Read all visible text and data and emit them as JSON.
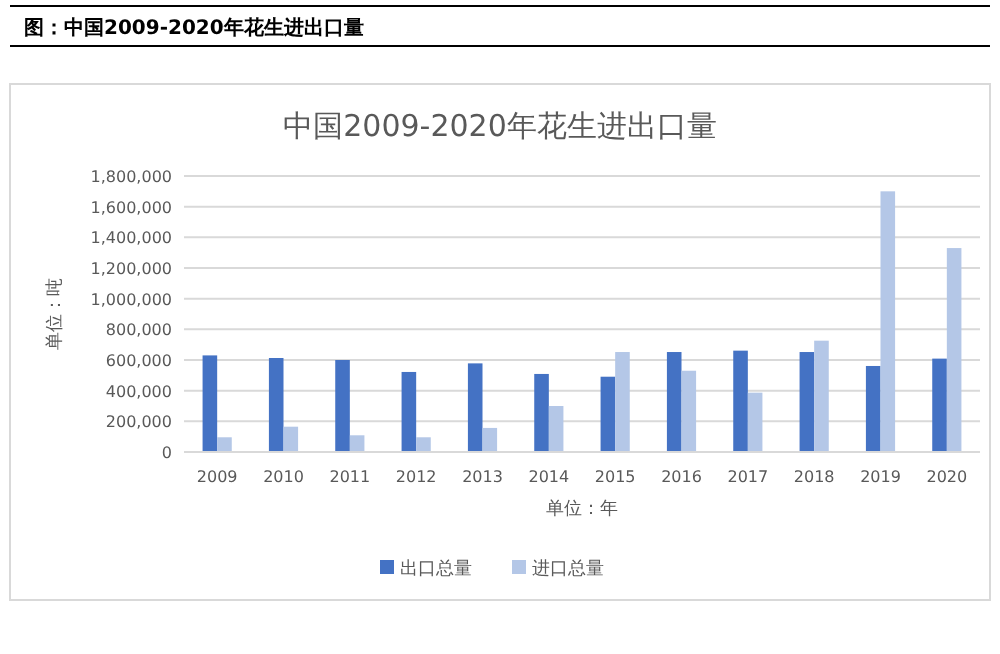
{
  "chart_data": {
    "type": "bar",
    "title": "中国2009-2020年花生进出口量",
    "xlabel": "单位：年",
    "ylabel": "单位：吨",
    "annotations": [
      "图：中国2009-2020年花生进出口量"
    ],
    "categories": [
      "2009",
      "2010",
      "2011",
      "2012",
      "2013",
      "2014",
      "2015",
      "2016",
      "2017",
      "2018",
      "2019",
      "2020"
    ],
    "series": [
      {
        "name": "出口总量",
        "color": "#4472c4",
        "values": [
          630000,
          613000,
          600000,
          522000,
          578000,
          509000,
          491000,
          652000,
          661000,
          652000,
          561000,
          609000
        ]
      },
      {
        "name": "进口总量",
        "color": "#b4c7e7",
        "values": [
          96000,
          165000,
          109000,
          96000,
          157000,
          300000,
          652000,
          530000,
          387000,
          726000,
          1700000,
          1330000
        ]
      }
    ],
    "ylim": [
      0,
      1800000
    ],
    "yticks": [
      {
        "value": 0,
        "label": "0"
      },
      {
        "value": 200000,
        "label": "200,000"
      },
      {
        "value": 400000,
        "label": "400,000"
      },
      {
        "value": 600000,
        "label": "600,000"
      },
      {
        "value": 800000,
        "label": "800,000"
      },
      {
        "value": 1000000,
        "label": "1,000,000"
      },
      {
        "value": 1200000,
        "label": "1,200,000"
      },
      {
        "value": 1400000,
        "label": "1,400,000"
      },
      {
        "value": 1600000,
        "label": "1,600,000"
      },
      {
        "value": 1800000,
        "label": "1,800,000"
      }
    ],
    "grid": "y",
    "legend": "bottom"
  }
}
